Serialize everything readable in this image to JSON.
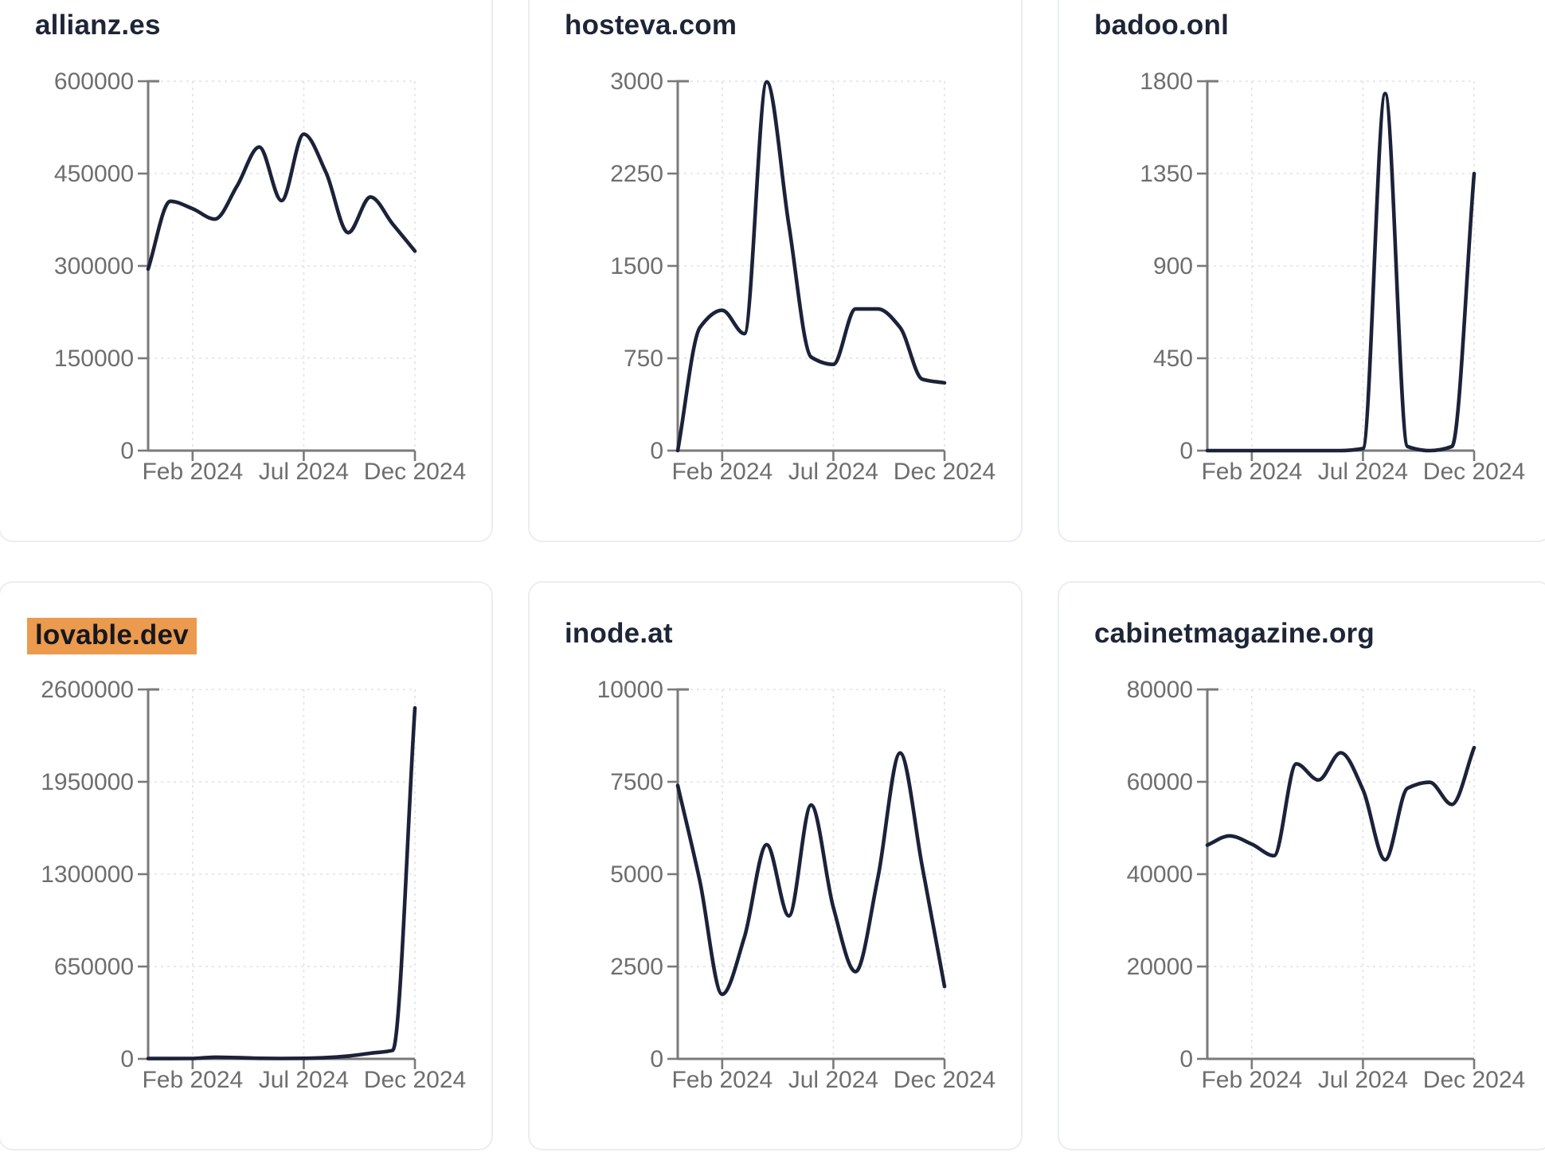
{
  "style": {
    "page_bg": "#FFFFFF",
    "card_bg": "#FFFFFF",
    "card_border": "#EBEDF2",
    "title_color": "#1D2537",
    "highlight_color": "#EC9A4D",
    "highlight_text_color": "#141821",
    "line_color": "#1B2239",
    "axis_color": "#7A7A7A",
    "grid_color": "#E2E2E4",
    "tick_label_color": "#6E6E6E"
  },
  "x_axis": {
    "tick_labels": [
      "Feb 2024",
      "Jul 2024",
      "Dec 2024"
    ],
    "tick_indices": [
      2,
      7,
      12
    ]
  },
  "months": [
    "Dec 2023",
    "Jan 2024",
    "Feb 2024",
    "Mar 2024",
    "Apr 2024",
    "May 2024",
    "Jun 2024",
    "Jul 2024",
    "Aug 2024",
    "Sep 2024",
    "Oct 2024",
    "Nov 2024",
    "Dec 2024"
  ],
  "chart_data": [
    {
      "type": "line",
      "title": "allianz.es",
      "title_highlight": false,
      "xlabel": "",
      "ylabel": "",
      "grid": true,
      "legend": null,
      "ylim": [
        0,
        600000
      ],
      "y_ticks": [
        0,
        150000,
        300000,
        450000,
        600000
      ],
      "x": [
        "Dec 2023",
        "Jan 2024",
        "Feb 2024",
        "Mar 2024",
        "Apr 2024",
        "May 2024",
        "Jun 2024",
        "Jul 2024",
        "Aug 2024",
        "Sep 2024",
        "Oct 2024",
        "Nov 2024",
        "Dec 2024"
      ],
      "values": [
        295000,
        405000,
        393000,
        376000,
        430000,
        493000,
        406000,
        514000,
        452000,
        354000,
        412000,
        368000,
        324000
      ]
    },
    {
      "type": "line",
      "title": "hosteva.com",
      "title_highlight": false,
      "xlabel": "",
      "ylabel": "",
      "grid": true,
      "legend": null,
      "ylim": [
        0,
        3000
      ],
      "y_ticks": [
        0,
        750,
        1500,
        2250,
        3000
      ],
      "x": [
        "Dec 2023",
        "Jan 2024",
        "Feb 2024",
        "Mar 2024",
        "Apr 2024",
        "May 2024",
        "Jun 2024",
        "Jul 2024",
        "Aug 2024",
        "Sep 2024",
        "Oct 2024",
        "Nov 2024",
        "Dec 2024"
      ],
      "values": [
        0,
        1000,
        1140,
        950,
        2995,
        1830,
        760,
        700,
        1150,
        1150,
        1000,
        580,
        550
      ]
    },
    {
      "type": "line",
      "title": "badoo.onl",
      "title_highlight": false,
      "xlabel": "",
      "ylabel": "",
      "grid": true,
      "legend": null,
      "ylim": [
        0,
        1800
      ],
      "y_ticks": [
        0,
        450,
        900,
        1350,
        1800
      ],
      "x": [
        "Dec 2023",
        "Jan 2024",
        "Feb 2024",
        "Mar 2024",
        "Apr 2024",
        "May 2024",
        "Jun 2024",
        "Jul 2024",
        "Aug 2024",
        "Sep 2024",
        "Oct 2024",
        "Nov 2024",
        "Dec 2024"
      ],
      "values": [
        0,
        0,
        0,
        0,
        0,
        0,
        0,
        10,
        1740,
        20,
        0,
        20,
        1350
      ]
    },
    {
      "type": "line",
      "title": "lovable.dev",
      "title_highlight": true,
      "xlabel": "",
      "ylabel": "",
      "grid": true,
      "legend": null,
      "ylim": [
        0,
        2600000
      ],
      "y_ticks": [
        0,
        650000,
        1300000,
        1950000,
        2600000
      ],
      "x": [
        "Dec 2023",
        "Jan 2024",
        "Feb 2024",
        "Mar 2024",
        "Apr 2024",
        "May 2024",
        "Jun 2024",
        "Jul 2024",
        "Aug 2024",
        "Sep 2024",
        "Oct 2024",
        "Nov 2024",
        "Dec 2024"
      ],
      "values": [
        2000,
        2000,
        3000,
        12000,
        9000,
        4000,
        3000,
        4000,
        9000,
        20000,
        40000,
        60000,
        2470000
      ]
    },
    {
      "type": "line",
      "title": "inode.at",
      "title_highlight": false,
      "xlabel": "",
      "ylabel": "",
      "grid": true,
      "legend": null,
      "ylim": [
        0,
        10000
      ],
      "y_ticks": [
        0,
        2500,
        5000,
        7500,
        10000
      ],
      "x": [
        "Dec 2023",
        "Jan 2024",
        "Feb 2024",
        "Mar 2024",
        "Apr 2024",
        "May 2024",
        "Jun 2024",
        "Jul 2024",
        "Aug 2024",
        "Sep 2024",
        "Oct 2024",
        "Nov 2024",
        "Dec 2024"
      ],
      "values": [
        7400,
        4800,
        1750,
        3300,
        5800,
        3870,
        6870,
        4100,
        2360,
        4900,
        8280,
        5200,
        1960
      ]
    },
    {
      "type": "line",
      "title": "cabinetmagazine.org",
      "title_highlight": false,
      "xlabel": "",
      "ylabel": "",
      "grid": true,
      "legend": null,
      "ylim": [
        0,
        80000
      ],
      "y_ticks": [
        0,
        20000,
        40000,
        60000,
        80000
      ],
      "x": [
        "Dec 2023",
        "Jan 2024",
        "Feb 2024",
        "Mar 2024",
        "Apr 2024",
        "May 2024",
        "Jun 2024",
        "Jul 2024",
        "Aug 2024",
        "Sep 2024",
        "Oct 2024",
        "Nov 2024",
        "Dec 2024"
      ],
      "values": [
        46300,
        48300,
        46500,
        44000,
        63900,
        60400,
        66300,
        58300,
        43100,
        58600,
        59900,
        55100,
        67400
      ]
    }
  ]
}
